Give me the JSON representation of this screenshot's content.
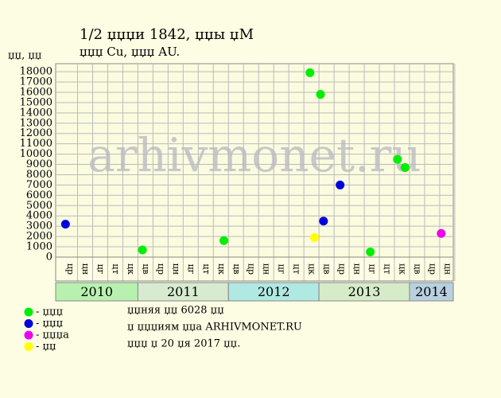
{
  "chart_data": {
    "type": "scatter",
    "title": "1/2 џџџи 1842, џџы џМ",
    "subtitle": "џџџ Cu, џџџ AU.",
    "y_label": "џџ, џџ",
    "watermark": "arhivmonet.ru",
    "category_groups": [
      {
        "label": "2010",
        "color": "#b8f0b0",
        "categories": [
          "цр",
          "цн",
          "цг",
          "цт",
          "цк"
        ]
      },
      {
        "label": "2011",
        "color": "#d6ebd0",
        "categories": [
          "цв",
          "цр",
          "цн",
          "цг",
          "цт",
          "цк"
        ]
      },
      {
        "label": "2012",
        "color": "#b0e8e2",
        "categories": [
          "цв",
          "цр",
          "цн",
          "цг",
          "цт",
          "цк"
        ]
      },
      {
        "label": "2013",
        "color": "#d6ebc8",
        "categories": [
          "цв",
          "цр",
          "цн",
          "цг",
          "цт",
          "цк"
        ]
      },
      {
        "label": "2014",
        "color": "#b8d0e0",
        "categories": [
          "цв",
          "цр",
          "цн"
        ]
      }
    ],
    "xlim": [
      -0.95,
      25.4
    ],
    "ylim": [
      0,
      18780
    ],
    "yticks": [
      0,
      1000,
      2000,
      3000,
      4000,
      5000,
      6000,
      7000,
      8000,
      9000,
      10000,
      11000,
      12000,
      13000,
      14000,
      15000,
      16000,
      17000,
      18000
    ],
    "grid": true,
    "series": [
      {
        "name": "- џџџ",
        "color": "#00ee00",
        "x": [
          4.8,
          10.2,
          15.9,
          16.6,
          19.9,
          21.7,
          22.2
        ],
        "values": [
          700,
          1600,
          17900,
          15800,
          500,
          9500,
          8700
        ]
      },
      {
        "name": "- џџџ",
        "color": "#0000dd",
        "x": [
          -0.3,
          16.8,
          17.9
        ],
        "values": [
          3200,
          3500,
          7000
        ]
      },
      {
        "name": "- џџџа",
        "color": "#ee00ee",
        "x": [
          24.6
        ],
        "values": [
          2300
        ]
      },
      {
        "name": "- џџ",
        "color": "#ffff00",
        "x": [
          16.2
        ],
        "values": [
          1900
        ]
      }
    ],
    "notes": [
      "џџняя џџ 6028 џџ",
      "џ џџџиям џџа ARHIVMONET.RU",
      "џџџ џ 20 џя 2017 џџ."
    ]
  }
}
